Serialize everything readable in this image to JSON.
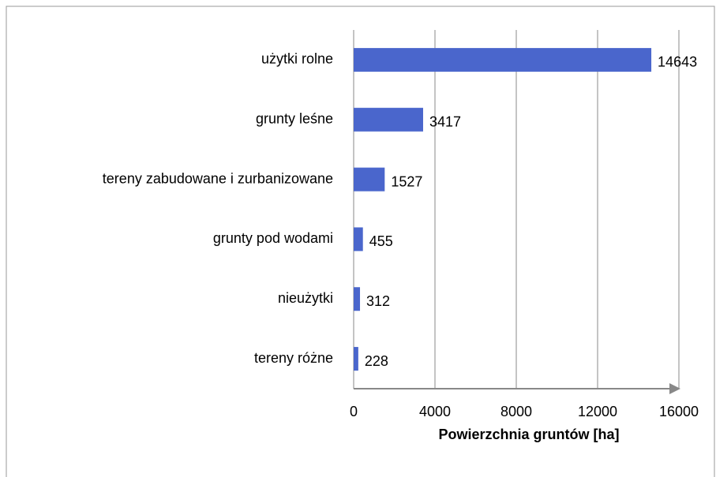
{
  "chart_data": {
    "type": "bar",
    "orientation": "horizontal",
    "categories": [
      "użytki rolne",
      "grunty leśne",
      "tereny zabudowane i zurbanizowane",
      "grunty pod wodami",
      "nieużytki",
      "tereny różne"
    ],
    "values": [
      14643,
      3417,
      1527,
      455,
      312,
      228
    ],
    "color": "#4a66cc",
    "x_label": "Powierzchnia gruntów [ha]",
    "xlim": [
      0,
      16000
    ],
    "xticks": [
      0,
      4000,
      8000,
      12000,
      16000
    ],
    "grid": true
  }
}
